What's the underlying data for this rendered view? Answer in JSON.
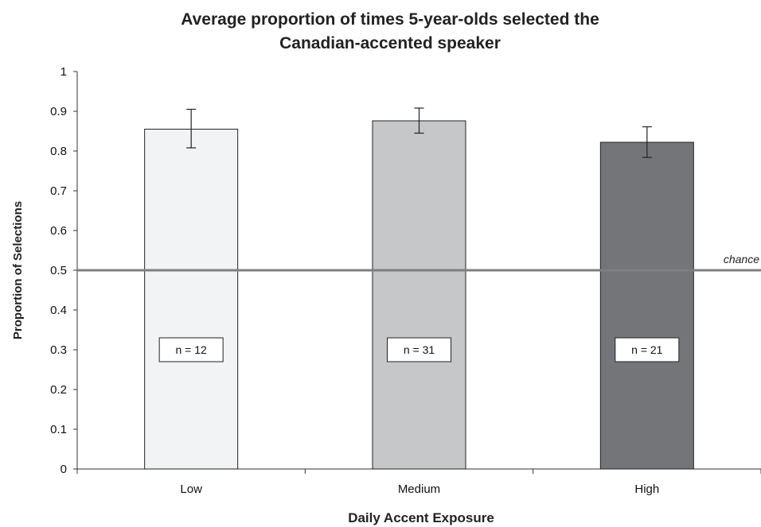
{
  "chart_data": {
    "type": "bar",
    "title_line1": "Average proportion of times 5-year-olds selected the",
    "title_line2": "Canadian-accented speaker",
    "xlabel": "Daily Accent Exposure",
    "ylabel": "Proportion of Selections",
    "ylim": [
      0,
      1
    ],
    "yticks": [
      "0",
      "0.1",
      "0.2",
      "0.3",
      "0.4",
      "0.5",
      "0.6",
      "0.7",
      "0.8",
      "0.9",
      "1"
    ],
    "categories": [
      "Low",
      "Medium",
      "High"
    ],
    "values": [
      0.855,
      0.876,
      0.822
    ],
    "error_upper": [
      0.905,
      0.908,
      0.861
    ],
    "error_lower": [
      0.808,
      0.845,
      0.784
    ],
    "n_labels": [
      "n = 12",
      "n = 31",
      "n = 21"
    ],
    "bar_colors": [
      "#f2f3f5",
      "#c6c7c9",
      "#747579"
    ],
    "reference_line": {
      "value": 0.5,
      "label": "chance",
      "color": "#7f7f7f"
    },
    "grid": false,
    "legend": "none"
  }
}
